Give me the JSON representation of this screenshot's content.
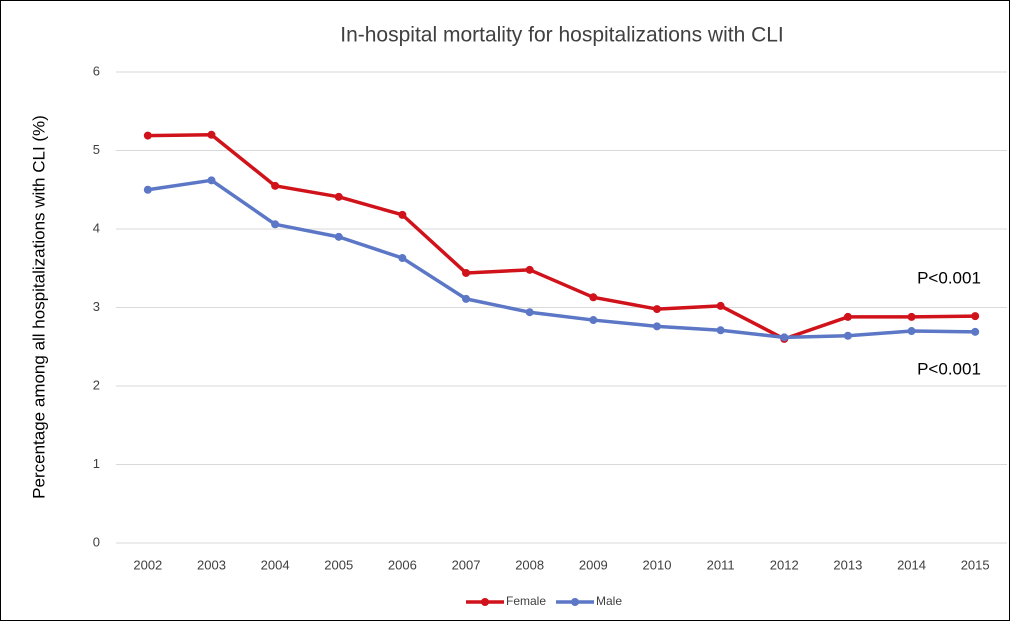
{
  "chart_data": {
    "type": "line",
    "title": "In-hospital mortality for hospitalizations with CLI",
    "y_label": "Percentage among all hospitalizations with CLI (%)",
    "categories": [
      "2002",
      "2003",
      "2004",
      "2005",
      "2006",
      "2007",
      "2008",
      "2009",
      "2010",
      "2011",
      "2012",
      "2013",
      "2014",
      "2015"
    ],
    "series": [
      {
        "name": "Female",
        "color": "#d0121b",
        "values": [
          5.19,
          5.2,
          4.55,
          4.41,
          4.18,
          3.44,
          3.48,
          3.13,
          2.98,
          3.02,
          2.6,
          2.88,
          2.88,
          2.89
        ]
      },
      {
        "name": "Male",
        "color": "#5b77c6",
        "values": [
          4.5,
          4.62,
          4.06,
          3.9,
          3.63,
          3.11,
          2.94,
          2.84,
          2.76,
          2.71,
          2.62,
          2.64,
          2.7,
          2.69
        ]
      }
    ],
    "annotations": [
      "P<0.001",
      "P<0.001"
    ],
    "ylim": [
      0,
      6
    ],
    "yticks": [
      0,
      1,
      2,
      3,
      4,
      5,
      6
    ],
    "grid": true,
    "legend": "bottom"
  }
}
